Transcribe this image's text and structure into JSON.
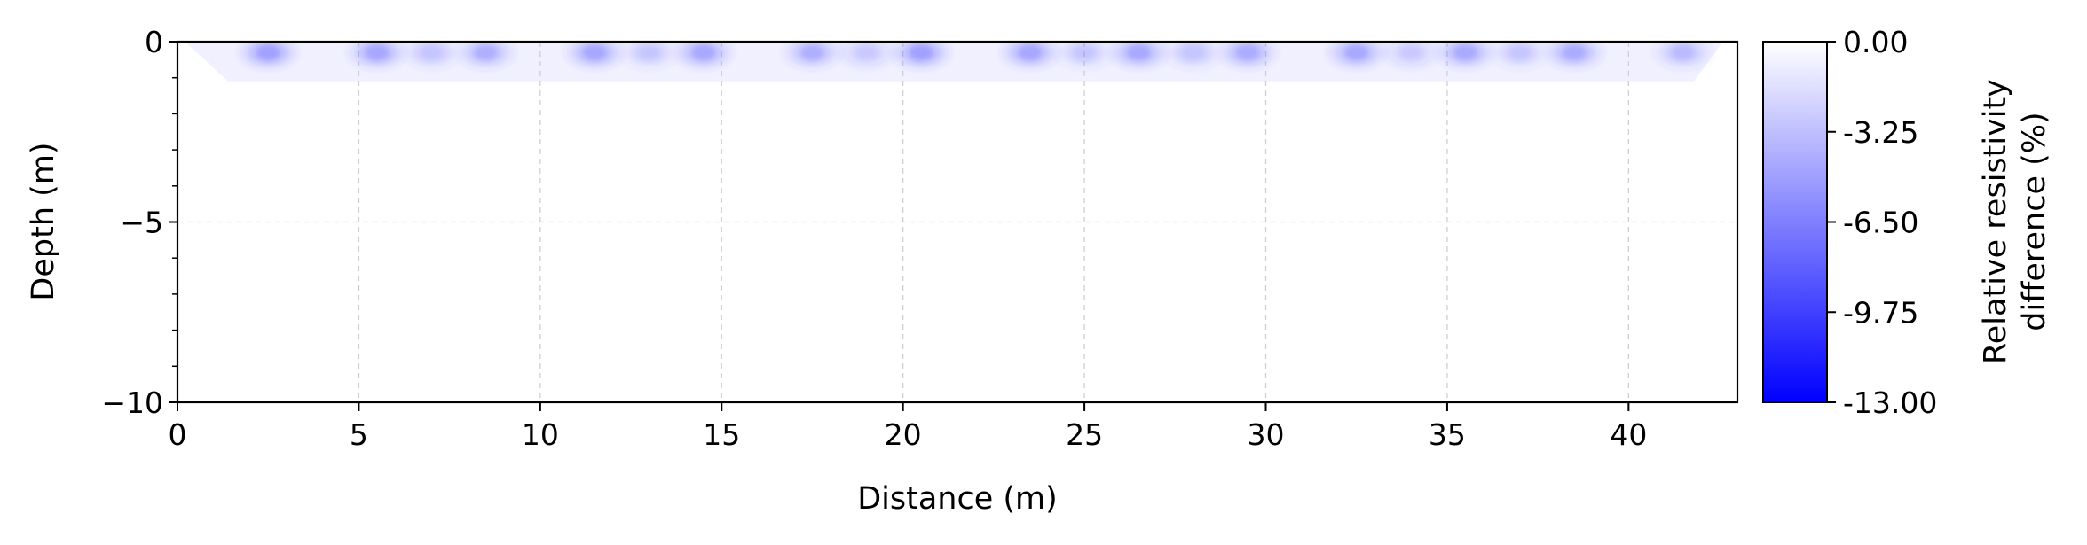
{
  "chart_data": {
    "type": "heatmap",
    "title": "",
    "xlabel": "Distance (m)",
    "ylabel": "Depth (m)",
    "xlim": [
      0,
      43
    ],
    "ylim": [
      -10,
      0
    ],
    "x_ticks": [
      0,
      5,
      10,
      15,
      20,
      25,
      30,
      35,
      40
    ],
    "y_ticks": [
      0,
      -5,
      -10
    ],
    "y_tick_labels": [
      "0",
      "−5",
      "−10"
    ],
    "grid": true,
    "colorbar": {
      "label_line1": "Relative resistivity",
      "label_line2": "difference (%)",
      "min": -13.0,
      "max": 0.0,
      "ticks": [
        "0.00",
        "-3.25",
        "-6.50",
        "-9.75",
        "-13.00"
      ],
      "tick_values": [
        0.0,
        -3.25,
        -6.5,
        -9.75,
        -13.0
      ],
      "color_min": "#0000ff",
      "color_max": "#ffffff"
    },
    "survey_region_bottom_m": -1.1,
    "survey_region_x": [
      0.2,
      42.6
    ],
    "anomalies": [
      {
        "x": 2.5,
        "depth": -0.3,
        "value": -3.0
      },
      {
        "x": 5.5,
        "depth": -0.3,
        "value": -2.8
      },
      {
        "x": 7.0,
        "depth": -0.3,
        "value": -1.6
      },
      {
        "x": 8.5,
        "depth": -0.3,
        "value": -2.4
      },
      {
        "x": 11.5,
        "depth": -0.3,
        "value": -2.8
      },
      {
        "x": 13.0,
        "depth": -0.3,
        "value": -1.5
      },
      {
        "x": 14.5,
        "depth": -0.3,
        "value": -2.9
      },
      {
        "x": 17.5,
        "depth": -0.3,
        "value": -2.4
      },
      {
        "x": 19.0,
        "depth": -0.3,
        "value": -1.4
      },
      {
        "x": 20.5,
        "depth": -0.3,
        "value": -3.0
      },
      {
        "x": 23.5,
        "depth": -0.3,
        "value": -2.8
      },
      {
        "x": 25.0,
        "depth": -0.3,
        "value": -1.5
      },
      {
        "x": 26.5,
        "depth": -0.3,
        "value": -2.9
      },
      {
        "x": 28.0,
        "depth": -0.3,
        "value": -1.6
      },
      {
        "x": 29.5,
        "depth": -0.3,
        "value": -2.6
      },
      {
        "x": 32.5,
        "depth": -0.3,
        "value": -2.9
      },
      {
        "x": 34.0,
        "depth": -0.3,
        "value": -1.4
      },
      {
        "x": 35.5,
        "depth": -0.3,
        "value": -2.7
      },
      {
        "x": 37.0,
        "depth": -0.3,
        "value": -1.5
      },
      {
        "x": 38.5,
        "depth": -0.3,
        "value": -2.6
      },
      {
        "x": 41.5,
        "depth": -0.3,
        "value": -2.0
      }
    ]
  }
}
